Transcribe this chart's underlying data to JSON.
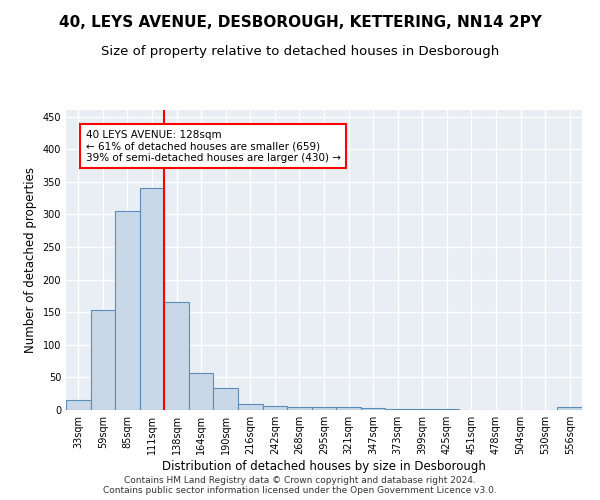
{
  "title": "40, LEYS AVENUE, DESBOROUGH, KETTERING, NN14 2PY",
  "subtitle": "Size of property relative to detached houses in Desborough",
  "xlabel": "Distribution of detached houses by size in Desborough",
  "ylabel": "Number of detached properties",
  "footer_line1": "Contains HM Land Registry data © Crown copyright and database right 2024.",
  "footer_line2": "Contains public sector information licensed under the Open Government Licence v3.0.",
  "bin_labels": [
    "33sqm",
    "59sqm",
    "85sqm",
    "111sqm",
    "138sqm",
    "164sqm",
    "190sqm",
    "216sqm",
    "242sqm",
    "268sqm",
    "295sqm",
    "321sqm",
    "347sqm",
    "373sqm",
    "399sqm",
    "425sqm",
    "451sqm",
    "478sqm",
    "504sqm",
    "530sqm",
    "556sqm"
  ],
  "bar_values": [
    15,
    153,
    305,
    340,
    165,
    57,
    33,
    9,
    6,
    4,
    5,
    5,
    3,
    2,
    1,
    1,
    0,
    0,
    0,
    0,
    4
  ],
  "bar_color": "#c8d8e8",
  "bar_edge_color": "#5b8db8",
  "vline_x": 3.5,
  "annotation_text": "40 LEYS AVENUE: 128sqm\n← 61% of detached houses are smaller (659)\n39% of semi-detached houses are larger (430) →",
  "annotation_box_color": "white",
  "annotation_box_edge_color": "red",
  "vline_color": "red",
  "ylim": [
    0,
    460
  ],
  "yticks": [
    0,
    50,
    100,
    150,
    200,
    250,
    300,
    350,
    400,
    450
  ],
  "background_color": "#e8eef4",
  "grid_color": "white",
  "title_fontsize": 11,
  "subtitle_fontsize": 9.5,
  "axis_label_fontsize": 8.5,
  "tick_fontsize": 7,
  "footer_fontsize": 6.5,
  "annotation_fontsize": 7.5
}
